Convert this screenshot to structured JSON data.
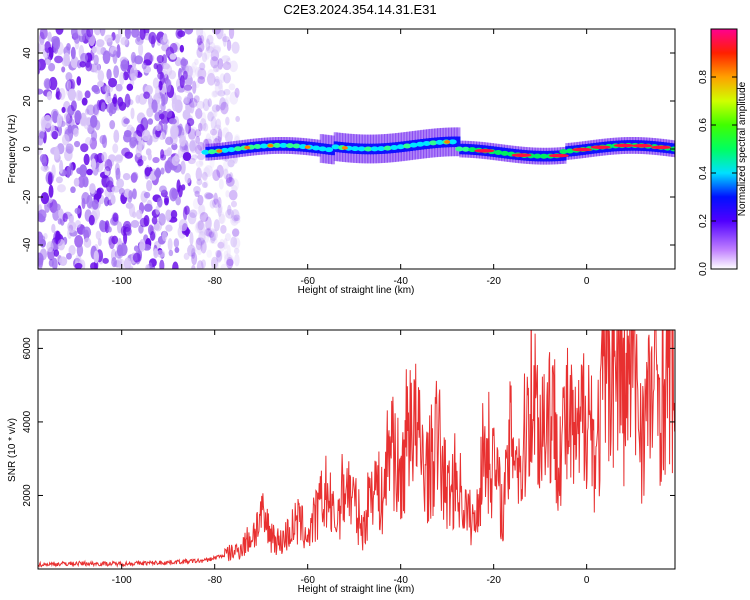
{
  "title": "C2E3.2024.354.14.31.E31",
  "colorbar": {
    "label": "Normalized spectral amplitude",
    "ticks": [
      "0.0",
      "0.2",
      "0.4",
      "0.6",
      "0.8"
    ]
  },
  "chart_data": [
    {
      "type": "heatmap",
      "title": "C2E3.2024.354.14.31.E31",
      "xlabel": "Height of straight line (km)",
      "ylabel": "Frequency (Hz)",
      "xlim": [
        -118,
        19
      ],
      "ylim": [
        -50,
        50
      ],
      "x_ticks": [
        -100,
        -80,
        -60,
        -40,
        -20,
        0
      ],
      "y_ticks": [
        -40,
        -20,
        0,
        20,
        40
      ],
      "colorbar_label": "Normalized spectral amplitude",
      "colorbar_range": [
        0,
        1
      ],
      "features": {
        "noise_region_x": [
          -118,
          -75
        ],
        "signal_band_x": [
          -82,
          19
        ],
        "signal_band_center_hz": 0,
        "signal_band_halfwidth_hz": 3
      }
    },
    {
      "type": "line",
      "xlabel": "Height of straight line (km)",
      "ylabel": "SNR (10 * v/v)",
      "xlim": [
        -118,
        19
      ],
      "ylim": [
        0,
        6500
      ],
      "x_ticks": [
        -100,
        -80,
        -60,
        -40,
        -20,
        0
      ],
      "y_ticks": [
        2000,
        4000,
        6000
      ],
      "series": [
        {
          "color": "#e83030",
          "x": [
            -118,
            -110,
            -100,
            -90,
            -82,
            -78,
            -75,
            -72,
            -70,
            -68,
            -66,
            -64,
            -62,
            -60,
            -58,
            -56,
            -54,
            -52,
            -50,
            -48,
            -46,
            -44,
            -42,
            -40,
            -38,
            -36,
            -34,
            -32,
            -30,
            -28,
            -26,
            -24,
            -22,
            -20,
            -18,
            -16,
            -14,
            -12,
            -10,
            -8,
            -6,
            -4,
            -2,
            0,
            2,
            4,
            6,
            8,
            10,
            12,
            14,
            16,
            18,
            19
          ],
          "y": [
            120,
            150,
            140,
            180,
            230,
            380,
            500,
            900,
            1400,
            1000,
            700,
            1000,
            1300,
            900,
            1500,
            2100,
            1200,
            2400,
            1800,
            1000,
            2600,
            1800,
            3800,
            2200,
            4500,
            3300,
            2600,
            3600,
            2000,
            2500,
            1600,
            1200,
            3400,
            2900,
            1500,
            3900,
            2600,
            5300,
            3800,
            4500,
            3400,
            4000,
            3200,
            4800,
            3000,
            5300,
            6100,
            4600,
            5700,
            3800,
            4800,
            5000,
            5600,
            5200
          ]
        }
      ]
    }
  ]
}
